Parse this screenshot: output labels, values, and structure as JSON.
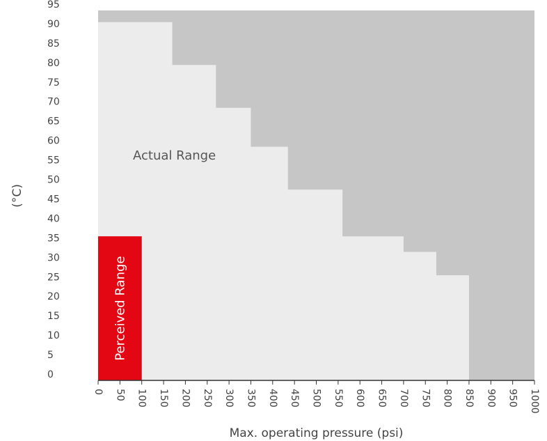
{
  "chart_data": {
    "type": "area",
    "title": "",
    "xlabel": "Max. operating pressure (psi)",
    "ylabel": "(°C)",
    "xlim": [
      0,
      1000
    ],
    "ylim": [
      0,
      95
    ],
    "x_ticks": [
      0,
      50,
      100,
      150,
      200,
      250,
      300,
      350,
      400,
      450,
      500,
      550,
      600,
      650,
      700,
      750,
      800,
      850,
      900,
      950,
      1000
    ],
    "y_ticks": [
      0,
      5,
      10,
      15,
      20,
      25,
      30,
      35,
      40,
      45,
      50,
      55,
      60,
      65,
      70,
      75,
      80,
      85,
      90,
      95
    ],
    "grid": false,
    "legend": "none",
    "colors": {
      "background_region": "#c6c6c6",
      "actual_range": "#ececec",
      "perceived_range": "#e30613",
      "text": "#444444"
    },
    "series": [
      {
        "name": "Actual Range",
        "shape": "step",
        "steps": [
          {
            "x_start": 0,
            "x_end": 170,
            "y": 92
          },
          {
            "x_start": 170,
            "x_end": 270,
            "y": 81
          },
          {
            "x_start": 270,
            "x_end": 350,
            "y": 70
          },
          {
            "x_start": 350,
            "x_end": 435,
            "y": 60
          },
          {
            "x_start": 435,
            "x_end": 560,
            "y": 49
          },
          {
            "x_start": 560,
            "x_end": 700,
            "y": 37
          },
          {
            "x_start": 700,
            "x_end": 775,
            "y": 33
          },
          {
            "x_start": 775,
            "x_end": 850,
            "y": 27
          }
        ]
      },
      {
        "name": "Perceived Range",
        "shape": "rect",
        "x_start": 0,
        "x_end": 100,
        "y": 37
      }
    ]
  }
}
